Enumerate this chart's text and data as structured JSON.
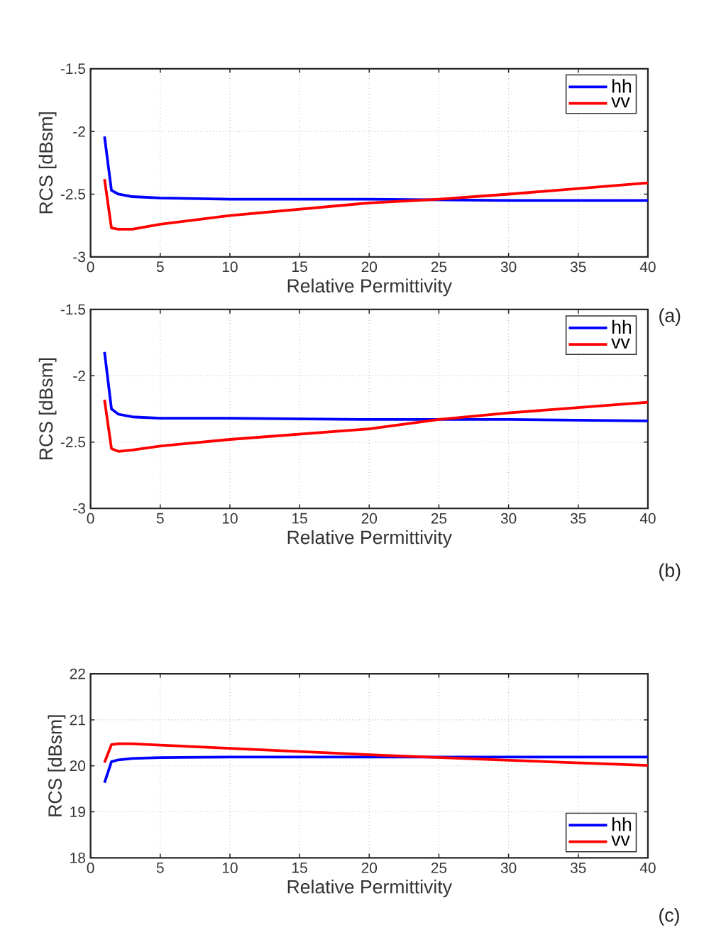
{
  "chart_data": [
    {
      "type": "line",
      "xlabel": "Relative Permittivity",
      "ylabel": "RCS [dBsm]",
      "annotations": [
        "(a)"
      ],
      "xlim": [
        0,
        40
      ],
      "xticks": [
        0,
        5,
        10,
        15,
        20,
        25,
        30,
        35,
        40
      ],
      "ylim": [
        -3,
        -1.5
      ],
      "yticks": [
        -3,
        -2.5,
        -2,
        -1.5
      ],
      "grid": true,
      "legend": "top right",
      "line_style": "solid",
      "marker": "none",
      "series": [
        {
          "name": "hh",
          "color": "#0000ff",
          "x": [
            1,
            1.5,
            2,
            3,
            5,
            10,
            20,
            30,
            40
          ],
          "values": [
            -2.04,
            -2.47,
            -2.5,
            -2.52,
            -2.53,
            -2.54,
            -2.54,
            -2.55,
            -2.55
          ]
        },
        {
          "name": "vv",
          "color": "#ff0000",
          "x": [
            1,
            1.5,
            2,
            3,
            5,
            10,
            20,
            25,
            30,
            40
          ],
          "values": [
            -2.38,
            -2.77,
            -2.78,
            -2.78,
            -2.74,
            -2.67,
            -2.57,
            -2.54,
            -2.5,
            -2.41
          ]
        }
      ]
    },
    {
      "type": "line",
      "xlabel": "Relative Permittivity",
      "ylabel": "RCS [dBsm]",
      "annotations": [
        "(b)"
      ],
      "xlim": [
        0,
        40
      ],
      "xticks": [
        0,
        5,
        10,
        15,
        20,
        25,
        30,
        35,
        40
      ],
      "ylim": [
        -3,
        -1.5
      ],
      "yticks": [
        -3,
        -2.5,
        -2,
        -1.5
      ],
      "grid": true,
      "legend": "top right",
      "line_style": "solid",
      "marker": "none",
      "series": [
        {
          "name": "hh",
          "color": "#0000ff",
          "x": [
            1,
            1.5,
            2,
            3,
            5,
            10,
            20,
            30,
            40
          ],
          "values": [
            -1.82,
            -2.25,
            -2.29,
            -2.31,
            -2.32,
            -2.32,
            -2.33,
            -2.33,
            -2.34
          ]
        },
        {
          "name": "vv",
          "color": "#ff0000",
          "x": [
            1,
            1.5,
            2,
            3,
            5,
            10,
            20,
            25,
            30,
            40
          ],
          "values": [
            -2.18,
            -2.55,
            -2.57,
            -2.56,
            -2.53,
            -2.48,
            -2.4,
            -2.33,
            -2.28,
            -2.2
          ]
        }
      ]
    },
    {
      "type": "line",
      "xlabel": "Relative Permittivity",
      "ylabel": "RCS [dBsm]",
      "annotations": [
        "(c)"
      ],
      "xlim": [
        0,
        40
      ],
      "xticks": [
        0,
        5,
        10,
        15,
        20,
        25,
        30,
        35,
        40
      ],
      "ylim": [
        18,
        22
      ],
      "yticks": [
        18,
        19,
        20,
        21,
        22
      ],
      "grid": true,
      "legend": "bottom right",
      "line_style": "solid",
      "marker": "none",
      "series": [
        {
          "name": "hh",
          "color": "#0000ff",
          "x": [
            1,
            1.5,
            2,
            3,
            5,
            10,
            20,
            30,
            40
          ],
          "values": [
            19.63,
            20.09,
            20.13,
            20.16,
            20.18,
            20.19,
            20.19,
            20.19,
            20.19
          ]
        },
        {
          "name": "vv",
          "color": "#ff0000",
          "x": [
            1,
            1.5,
            2,
            3,
            5,
            10,
            20,
            30,
            40
          ],
          "values": [
            20.07,
            20.46,
            20.48,
            20.48,
            20.45,
            20.38,
            20.24,
            20.12,
            20.01
          ]
        }
      ]
    }
  ]
}
